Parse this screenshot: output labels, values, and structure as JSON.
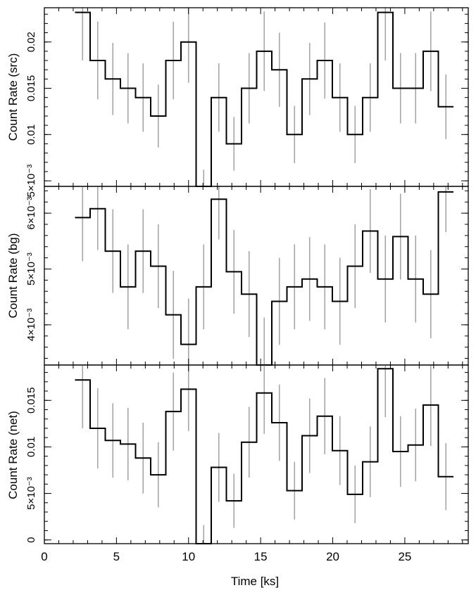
{
  "chart_data": [
    {
      "type": "line",
      "style": "step",
      "ylabel": "Count Rate (src)",
      "yticks": [
        {
          "v": 0.005,
          "label": "5×10⁻³"
        },
        {
          "v": 0.01,
          "label": "0.01"
        },
        {
          "v": 0.015,
          "label": "0.015"
        },
        {
          "v": 0.02,
          "label": "0.02"
        }
      ],
      "ylim": [
        0.0044,
        0.0237
      ],
      "x": [
        2.65,
        3.7,
        4.75,
        5.8,
        6.85,
        7.9,
        8.95,
        10.0,
        11.05,
        12.1,
        13.15,
        14.2,
        15.25,
        16.3,
        17.35,
        18.4,
        19.45,
        20.5,
        21.55,
        22.6,
        23.65,
        24.7,
        25.75,
        26.8,
        27.85
      ],
      "values": [
        0.0232,
        0.018,
        0.016,
        0.015,
        0.014,
        0.012,
        0.018,
        0.02,
        0.004,
        0.014,
        0.009,
        0.015,
        0.019,
        0.017,
        0.01,
        0.016,
        0.018,
        0.014,
        0.01,
        0.014,
        0.0232,
        0.015,
        0.015,
        0.019,
        0.013
      ],
      "errors": [
        0.0052,
        0.0042,
        0.0039,
        0.0038,
        0.0037,
        0.0034,
        0.0042,
        0.0044,
        0.0022,
        0.0037,
        0.0029,
        0.0038,
        0.0043,
        0.004,
        0.0031,
        0.0039,
        0.0041,
        0.0037,
        0.0031,
        0.0037,
        0.0052,
        0.0038,
        0.0038,
        0.0043,
        0.0035
      ]
    },
    {
      "type": "line",
      "style": "step",
      "ylabel": "Count Rate (bg)",
      "yticks": [
        {
          "v": 0.004,
          "label": "4×10⁻³"
        },
        {
          "v": 0.005,
          "label": "5×10⁻³"
        },
        {
          "v": 0.006,
          "label": "6×10⁻³"
        }
      ],
      "ylim": [
        0.00328,
        0.00648
      ],
      "x": [
        2.65,
        3.7,
        4.75,
        5.8,
        6.85,
        7.9,
        8.95,
        10.0,
        11.05,
        12.1,
        13.15,
        14.2,
        15.25,
        16.3,
        17.35,
        18.4,
        19.45,
        20.5,
        21.55,
        22.6,
        23.65,
        24.7,
        25.75,
        26.8,
        27.85
      ],
      "values": [
        0.00592,
        0.00608,
        0.00532,
        0.00468,
        0.00532,
        0.00505,
        0.00418,
        0.00365,
        0.00468,
        0.00625,
        0.00495,
        0.00455,
        0.00328,
        0.00442,
        0.00468,
        0.00482,
        0.00468,
        0.00442,
        0.00505,
        0.00568,
        0.00482,
        0.00558,
        0.00482,
        0.00455,
        0.00638
      ],
      "errors": [
        0.00078,
        0.00074,
        0.00075,
        0.00076,
        0.00075,
        0.00075,
        0.00079,
        0.00082,
        0.00076,
        0.00072,
        0.00075,
        0.00077,
        0.00085,
        0.00078,
        0.00076,
        0.00075,
        0.00076,
        0.00078,
        0.00075,
        0.00075,
        0.00078,
        0.00077,
        0.00078,
        0.00079,
        0.00072
      ]
    },
    {
      "type": "line",
      "style": "step",
      "ylabel": "Count Rate (net)",
      "xlabel": "Time [ks]",
      "xticks": [
        0,
        5,
        10,
        15,
        20,
        25
      ],
      "yticks": [
        {
          "v": 0,
          "label": "0"
        },
        {
          "v": 0.005,
          "label": "5×10⁻³"
        },
        {
          "v": 0.01,
          "label": "0.01"
        },
        {
          "v": 0.015,
          "label": "0.015"
        }
      ],
      "ylim": [
        -0.0004,
        0.0188
      ],
      "x": [
        2.65,
        3.7,
        4.75,
        5.8,
        6.85,
        7.9,
        8.95,
        10.0,
        11.05,
        12.1,
        13.15,
        14.2,
        15.25,
        16.3,
        17.35,
        18.4,
        19.45,
        20.5,
        21.55,
        22.6,
        23.65,
        24.7,
        25.75,
        26.8,
        27.85
      ],
      "values": [
        0.0172,
        0.012,
        0.0107,
        0.0103,
        0.0088,
        0.007,
        0.0138,
        0.0162,
        -0.0008,
        0.0078,
        0.0042,
        0.0105,
        0.0158,
        0.0126,
        0.0053,
        0.0112,
        0.0133,
        0.0096,
        0.0049,
        0.0084,
        0.0184,
        0.0095,
        0.0102,
        0.0145,
        0.0068
      ],
      "errors": [
        0.0052,
        0.0043,
        0.004,
        0.0039,
        0.0038,
        0.0035,
        0.0042,
        0.0045,
        0.0024,
        0.0037,
        0.0029,
        0.0038,
        0.0044,
        0.0041,
        0.0031,
        0.004,
        0.0041,
        0.0037,
        0.0031,
        0.0038,
        0.0052,
        0.0038,
        0.0039,
        0.0044,
        0.0036
      ]
    }
  ]
}
